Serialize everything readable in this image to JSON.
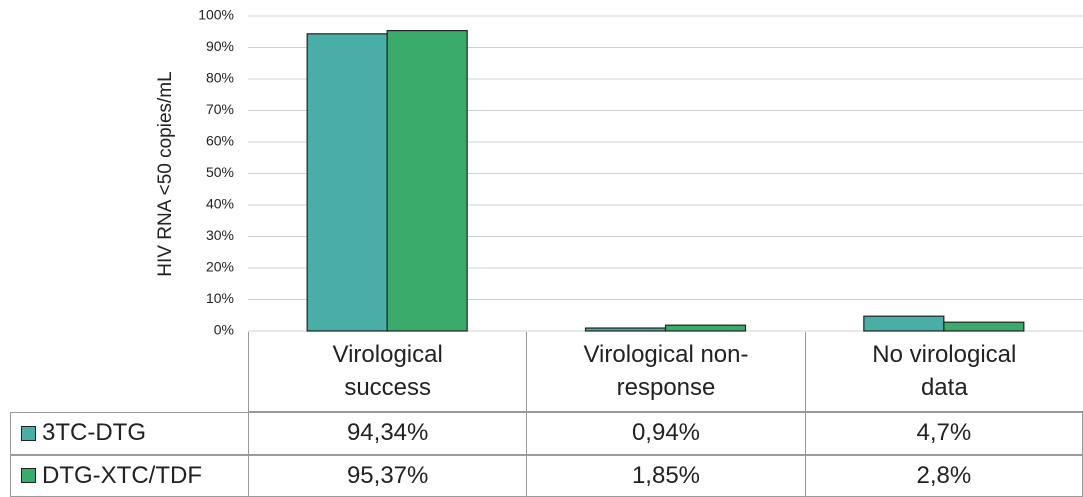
{
  "chart_data": {
    "type": "bar",
    "y_label": "HIV RNA <50 copies/mL",
    "categories": [
      "Virological success",
      "Virological non-response",
      "No virological data"
    ],
    "series": [
      {
        "name": "3TC-DTG",
        "color": "#48aea6",
        "values": [
          94.34,
          0.94,
          4.7
        ],
        "value_labels": [
          "94,34%",
          "0,94%",
          "4,7%"
        ]
      },
      {
        "name": "DTG-XTC/TDF",
        "color": "#3aab6a",
        "values": [
          95.37,
          1.85,
          2.8
        ],
        "value_labels": [
          "95,37%",
          "1,85%",
          "2,8%"
        ]
      }
    ],
    "ylim": [
      0,
      100
    ],
    "yticks": [
      {
        "value": 0,
        "label": "0%"
      },
      {
        "value": 10,
        "label": "10%"
      },
      {
        "value": 20,
        "label": "20%"
      },
      {
        "value": 30,
        "label": "30%"
      },
      {
        "value": 40,
        "label": "40%"
      },
      {
        "value": 50,
        "label": "50%"
      },
      {
        "value": 60,
        "label": "60%"
      },
      {
        "value": 70,
        "label": "70%"
      },
      {
        "value": 80,
        "label": "80%"
      },
      {
        "value": 90,
        "label": "90%"
      },
      {
        "value": 100,
        "label": "100%"
      }
    ],
    "grid": true
  }
}
